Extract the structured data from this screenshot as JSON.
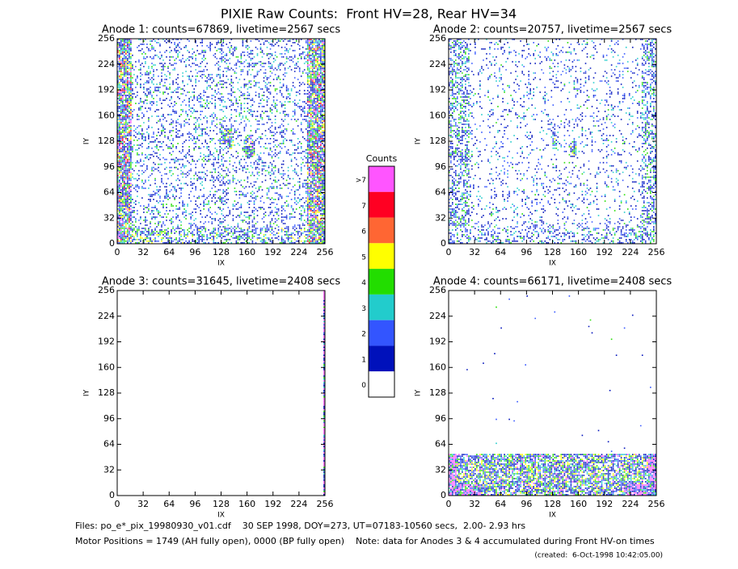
{
  "title": "PIXIE Raw Counts:  Front HV=28, Rear HV=34",
  "chart_data": [
    {
      "type": "heatmap",
      "title": "Anode 1: counts=67869, livetime=2567 secs",
      "xlabel": "IX",
      "ylabel": "IY",
      "xlim": [
        0,
        256
      ],
      "ylim": [
        0,
        256
      ],
      "xticks": [
        0,
        32,
        64,
        96,
        128,
        160,
        192,
        224,
        256
      ],
      "yticks": [
        0,
        32,
        64,
        96,
        128,
        160,
        192,
        224,
        256
      ]
    },
    {
      "type": "heatmap",
      "title": "Anode 2: counts=20757, livetime=2567 secs",
      "xlabel": "IX",
      "ylabel": "IY",
      "xlim": [
        0,
        256
      ],
      "ylim": [
        0,
        256
      ],
      "xticks": [
        0,
        32,
        64,
        96,
        128,
        160,
        192,
        224,
        256
      ],
      "yticks": [
        0,
        32,
        64,
        96,
        128,
        160,
        192,
        224,
        256
      ]
    },
    {
      "type": "heatmap",
      "title": "Anode 3: counts=31645, livetime=2408 secs",
      "xlabel": "IX",
      "ylabel": "IY",
      "xlim": [
        0,
        256
      ],
      "ylim": [
        0,
        256
      ],
      "xticks": [
        0,
        32,
        64,
        96,
        128,
        160,
        192,
        224,
        256
      ],
      "yticks": [
        0,
        32,
        64,
        96,
        128,
        160,
        192,
        224,
        256
      ]
    },
    {
      "type": "heatmap",
      "title": "Anode 4: counts=66171, livetime=2408 secs",
      "xlabel": "IX",
      "ylabel": "IY",
      "xlim": [
        0,
        256
      ],
      "ylim": [
        0,
        256
      ],
      "xticks": [
        0,
        32,
        64,
        96,
        128,
        160,
        192,
        224,
        256
      ],
      "yticks": [
        0,
        32,
        64,
        96,
        128,
        160,
        192,
        224,
        256
      ]
    }
  ],
  "colorbar": {
    "title": "Counts",
    "labels": [
      ">7",
      "7",
      "6",
      "5",
      "4",
      "3",
      "2",
      "1",
      "0"
    ],
    "colors": [
      "#ff55ff",
      "#ff0022",
      "#ff6633",
      "#ffff00",
      "#22dd00",
      "#22cccc",
      "#3355ff",
      "#0011bb",
      "#ffffff"
    ]
  },
  "footer": {
    "files": "Files: po_e*_pix_19980930_v01.cdf    30 SEP 1998, DOY=273, UT=07183-10560 secs,  2.00- 2.93 hrs",
    "motor": "Motor Positions = 1749 (AH fully open), 0000 (BP fully open)    Note: data for Anodes 3 & 4 accumulated during Front HV-on times",
    "created": "(created:  6-Oct-1998 10:42:05.00)"
  }
}
